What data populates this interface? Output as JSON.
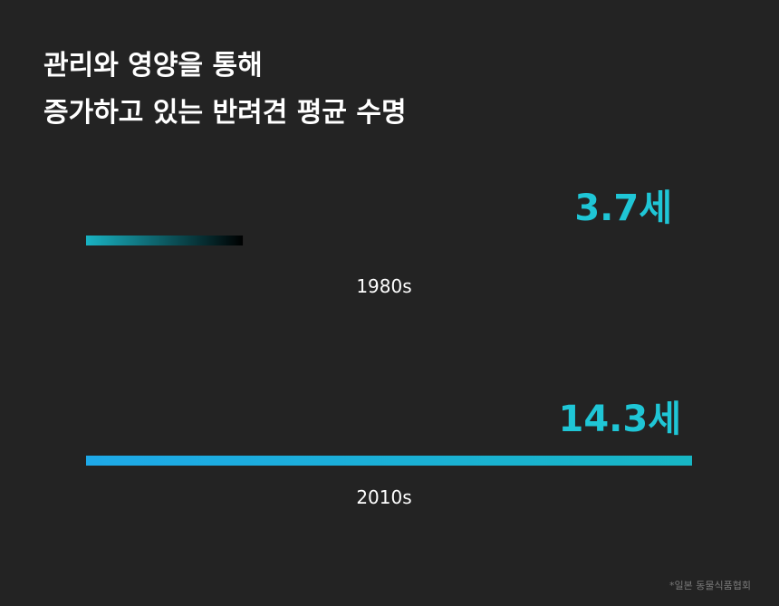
{
  "chart_data": {
    "type": "hbar",
    "title": [
      "관리와 영양을 통해",
      "증가하고 있는 반려견 평균 수명"
    ],
    "categories": [
      "1980s",
      "2010s"
    ],
    "values": [
      3.7,
      14.3
    ],
    "value_labels": [
      "3.7세",
      "14.3세"
    ],
    "xlim": [
      0,
      14.3
    ],
    "source": "*일본 동물식품협회"
  }
}
